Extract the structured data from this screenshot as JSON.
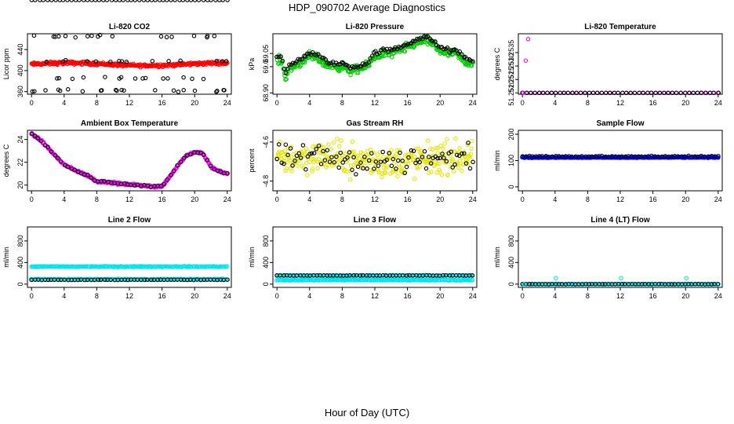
{
  "figure": {
    "title": "HDP_090702  Average Diagnostics",
    "xlabel": "Hour of Day (UTC)"
  },
  "chart_data": [
    {
      "type": "scatter",
      "title": "Li-820 CO2",
      "ylabel": "Licor ppm",
      "xlim": [
        -0.5,
        24.5
      ],
      "ylim": [
        355,
        470
      ],
      "xticks": [
        0,
        4,
        8,
        12,
        16,
        20,
        24
      ],
      "yticks": [
        360,
        400,
        440
      ],
      "ytick_labels": [
        "360",
        "400",
        "440"
      ],
      "series": [
        {
          "name": "dense",
          "color": "#ff0000",
          "pattern": {
            "kind": "band",
            "base": 412,
            "amp": 2.5,
            "noise": 2.5,
            "count": 300
          }
        },
        {
          "name": "averages",
          "color": "#000000",
          "pattern": {
            "kind": "co2_scatter"
          }
        }
      ]
    },
    {
      "type": "scatter",
      "title": "Li-820 Pressure",
      "ylabel": "kPa",
      "xlim": [
        -0.5,
        24.5
      ],
      "ylim": [
        68.895,
        69.125
      ],
      "xticks": [
        0,
        4,
        8,
        12,
        16,
        20,
        24
      ],
      "yticks": [
        68.9,
        69.0,
        69.05
      ],
      "ytick_labels": [
        "68.90",
        "69.0",
        "69.05"
      ],
      "series": [
        {
          "name": "dense",
          "color": "#00cc00",
          "pattern": {
            "kind": "pressure",
            "noise": 0.014,
            "count": 320,
            "offset": 0
          }
        },
        {
          "name": "averages",
          "color": "#000000",
          "pattern": {
            "kind": "pressure",
            "noise": 0.007,
            "count": 110,
            "offset": 0.012
          }
        }
      ]
    },
    {
      "type": "scatter",
      "title": "Li-820 Temperature",
      "ylabel": "degrees C",
      "xlim": [
        -0.5,
        24.5
      ],
      "ylim": [
        51.25195,
        51.2542
      ],
      "xticks": [
        0,
        4,
        8,
        12,
        16,
        20,
        24
      ],
      "yticks": [
        51.252,
        51.2525,
        51.253,
        51.2535
      ],
      "ytick_labels": [
        "51.2520",
        "51.2525",
        "51.2530",
        "51.2535"
      ],
      "series": [
        {
          "name": "dense",
          "color": "#ff00ff",
          "pattern": {
            "kind": "flat",
            "value": 51.252,
            "count": 48
          }
        },
        {
          "name": "averages",
          "color": "#000000",
          "pattern": {
            "kind": "flat",
            "value": 51.252,
            "count": 48
          }
        },
        {
          "name": "outliers",
          "color": "#ff00ff",
          "points": [
            [
              0.1,
              51.252
            ],
            [
              0.4,
              51.2532
            ],
            [
              0.7,
              51.254
            ]
          ]
        }
      ]
    },
    {
      "type": "scatter",
      "title": "Ambient Box Temperature",
      "ylabel": "degrees C",
      "xlim": [
        -0.5,
        24.5
      ],
      "ylim": [
        19.5,
        24.8
      ],
      "xticks": [
        0,
        4,
        8,
        12,
        16,
        20,
        24
      ],
      "yticks": [
        20,
        22,
        24
      ],
      "ytick_labels": [
        "20",
        "22",
        "24"
      ],
      "series": [
        {
          "name": "dense",
          "color": "#ff00ff",
          "pattern": {
            "kind": "ambient",
            "noise": 0.08,
            "count": 300
          }
        },
        {
          "name": "averages",
          "color": "#000000",
          "pattern": {
            "kind": "ambient",
            "noise": 0.06,
            "count": 60
          }
        }
      ]
    },
    {
      "type": "scatter",
      "title": "Gas Stream RH",
      "ylabel": "percent",
      "xlim": [
        -0.5,
        24.5
      ],
      "ylim": [
        -4.85,
        -4.54
      ],
      "xticks": [
        0,
        4,
        8,
        12,
        16,
        20,
        24
      ],
      "yticks": [
        -4.8,
        -4.6
      ],
      "ytick_labels": [
        "-4.8",
        "-4.6"
      ],
      "series": [
        {
          "name": "dense",
          "color": "#e6e600",
          "pattern": {
            "kind": "band",
            "base": -4.69,
            "amp": 0.015,
            "noise": 0.07,
            "count": 320
          }
        },
        {
          "name": "averages",
          "color": "#000000",
          "pattern": {
            "kind": "band",
            "base": -4.69,
            "amp": 0.01,
            "noise": 0.06,
            "count": 90
          }
        }
      ]
    },
    {
      "type": "scatter",
      "title": "Sample Flow",
      "ylabel": "ml/min",
      "xlim": [
        -0.5,
        24.5
      ],
      "ylim": [
        -15,
        215
      ],
      "xticks": [
        0,
        4,
        8,
        12,
        16,
        20,
        24
      ],
      "yticks": [
        0,
        100,
        200
      ],
      "ytick_labels": [
        "0",
        "100",
        "200"
      ],
      "series": [
        {
          "name": "dense",
          "color": "#0000ff",
          "pattern": {
            "kind": "band",
            "base": 112,
            "amp": 0,
            "noise": 1.5,
            "count": 300
          }
        },
        {
          "name": "averages",
          "color": "#000000",
          "pattern": {
            "kind": "band",
            "base": 116,
            "amp": 0,
            "noise": 1.5,
            "count": 60
          }
        }
      ]
    },
    {
      "type": "scatter",
      "title": "Line 2 Flow",
      "ylabel": "ml/min",
      "xlim": [
        -0.5,
        24.5
      ],
      "ylim": [
        -60,
        1060
      ],
      "xticks": [
        0,
        4,
        8,
        12,
        16,
        20,
        24
      ],
      "yticks": [
        0,
        400,
        800
      ],
      "ytick_labels": [
        "0",
        "400",
        "800"
      ],
      "series": [
        {
          "name": "dense-high",
          "color": "#00e5ee",
          "pattern": {
            "kind": "band",
            "base": 325,
            "amp": 0,
            "noise": 8,
            "count": 200
          }
        },
        {
          "name": "dense-low",
          "color": "#00e5ee",
          "pattern": {
            "kind": "band",
            "base": 90,
            "amp": 0,
            "noise": 8,
            "count": 200
          }
        },
        {
          "name": "averages",
          "color": "#000000",
          "pattern": {
            "kind": "band",
            "base": 80,
            "amp": 0,
            "noise": 3,
            "count": 60
          }
        }
      ]
    },
    {
      "type": "scatter",
      "title": "Line 3 Flow",
      "ylabel": "ml/min",
      "xlim": [
        -0.5,
        24.5
      ],
      "ylim": [
        -60,
        1060
      ],
      "xticks": [
        0,
        4,
        8,
        12,
        16,
        20,
        24
      ],
      "yticks": [
        0,
        400,
        800
      ],
      "ytick_labels": [
        "0",
        "400",
        "800"
      ],
      "series": [
        {
          "name": "dense-high",
          "color": "#00e5ee",
          "pattern": {
            "kind": "band",
            "base": 160,
            "amp": 0,
            "noise": 6,
            "count": 200
          }
        },
        {
          "name": "dense-low",
          "color": "#00e5ee",
          "pattern": {
            "kind": "band",
            "base": 75,
            "amp": 0,
            "noise": 6,
            "count": 200
          }
        },
        {
          "name": "averages",
          "color": "#000000",
          "pattern": {
            "kind": "band",
            "base": 160,
            "amp": 0,
            "noise": 3,
            "count": 60
          }
        }
      ]
    },
    {
      "type": "scatter",
      "title": "Line 4 (LT) Flow",
      "ylabel": "ml/min",
      "xlim": [
        -0.5,
        24.5
      ],
      "ylim": [
        -60,
        1060
      ],
      "xticks": [
        0,
        4,
        8,
        12,
        16,
        20,
        24
      ],
      "yticks": [
        0,
        400,
        800
      ],
      "ytick_labels": [
        "0",
        "400",
        "800"
      ],
      "series": [
        {
          "name": "dense",
          "color": "#00e5ee",
          "pattern": {
            "kind": "band",
            "base": 0,
            "amp": 0,
            "noise": 2,
            "count": 200
          }
        },
        {
          "name": "averages",
          "color": "#000000",
          "pattern": {
            "kind": "band",
            "base": 0,
            "amp": 0,
            "noise": 2,
            "count": 60
          }
        },
        {
          "name": "spikes",
          "color": "#00e5ee",
          "points": [
            [
              0.2,
              0
            ],
            [
              4.1,
              110
            ],
            [
              12.1,
              110
            ],
            [
              20.1,
              110
            ]
          ]
        }
      ]
    }
  ]
}
